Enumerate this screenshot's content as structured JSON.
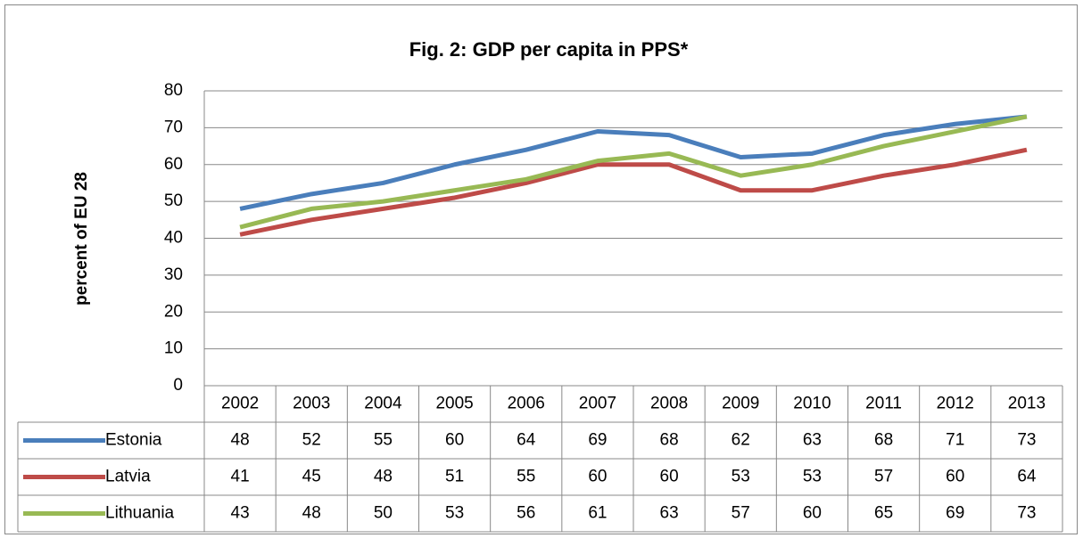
{
  "chart_data": {
    "type": "line",
    "title": "Fig. 2: GDP per capita in PPS*",
    "y_label": "percent of EU 28",
    "categories": [
      "2002",
      "2003",
      "2004",
      "2005",
      "2006",
      "2007",
      "2008",
      "2009",
      "2010",
      "2011",
      "2012",
      "2013"
    ],
    "series": [
      {
        "name": "Estonia",
        "color": "#4a7ebb",
        "values": [
          48,
          52,
          55,
          60,
          64,
          69,
          68,
          62,
          63,
          68,
          71,
          73
        ]
      },
      {
        "name": "Latvia",
        "color": "#be4b48",
        "values": [
          41,
          45,
          48,
          51,
          55,
          60,
          60,
          53,
          53,
          57,
          60,
          64
        ]
      },
      {
        "name": "Lithuania",
        "color": "#98b954",
        "values": [
          43,
          48,
          50,
          53,
          56,
          61,
          63,
          57,
          60,
          65,
          69,
          73
        ]
      }
    ],
    "ylim": [
      0,
      80
    ],
    "yticks": [
      0,
      10,
      20,
      30,
      40,
      50,
      60,
      70,
      80
    ],
    "grid": true
  }
}
